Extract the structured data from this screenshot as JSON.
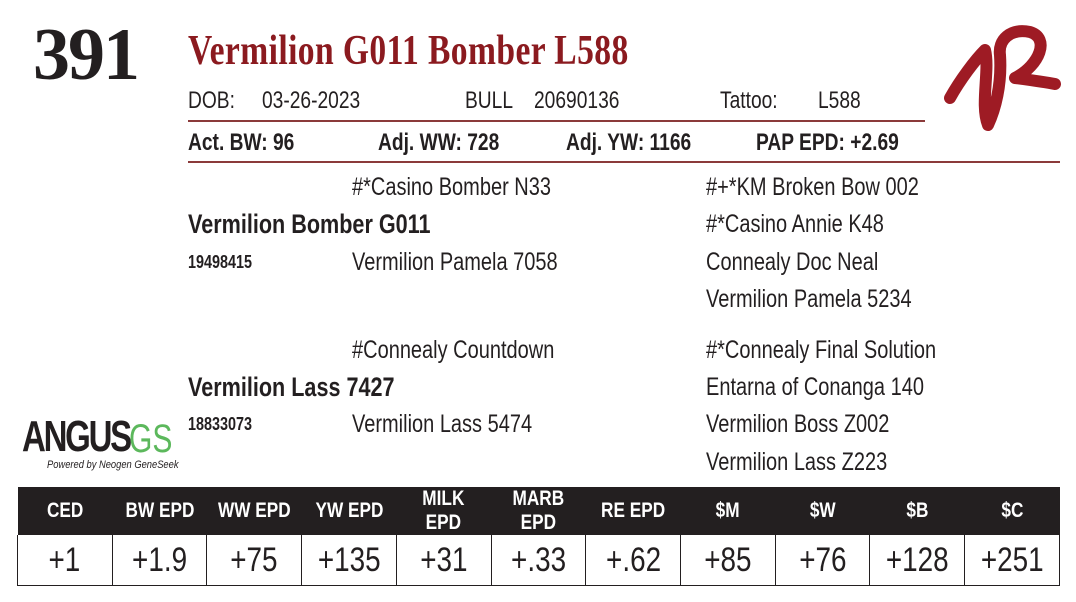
{
  "lot_number": "391",
  "animal_name": "Vermilion G011 Bomber L588",
  "info": {
    "dob_label": "DOB:",
    "dob": "03-26-2023",
    "sex": "BULL",
    "registration": "20690136",
    "tattoo_label": "Tattoo:",
    "tattoo": "L588"
  },
  "stats": {
    "act_bw": "Act. BW: 96",
    "adj_ww": "Adj. WW: 728",
    "adj_yw": "Adj. YW: 1166",
    "pap_epd": "PAP EPD: +2.69"
  },
  "pedigree": {
    "sire": {
      "name": "Vermilion Bomber G011",
      "reg": "19498415",
      "sire": "#*Casino Bomber N33",
      "dam": "Vermilion Pamela 7058",
      "gp": [
        "#+*KM Broken Bow 002",
        "#*Casino Annie K48",
        "Connealy Doc Neal",
        "Vermilion Pamela 5234"
      ]
    },
    "dam": {
      "name": "Vermilion Lass 7427",
      "reg": "18833073",
      "sire": "#Connealy Countdown",
      "dam": "Vermilion Lass 5474",
      "gp": [
        "#*Connealy Final Solution",
        "Entarna of Conanga 140",
        "Vermilion Boss Z002",
        "Vermilion Lass Z223"
      ]
    }
  },
  "logos": {
    "ranch": "VR",
    "angus_main": "ANGUS",
    "angus_gs": "GS",
    "angus_tagline": "Powered by Neogen GeneSeek"
  },
  "epd": {
    "headers": [
      "CED",
      "BW EPD",
      "WW EPD",
      "YW EPD",
      "MILK EPD",
      "MARB EPD",
      "RE EPD",
      "$M",
      "$W",
      "$B",
      "$C"
    ],
    "values": [
      "+1",
      "+1.9",
      "+75",
      "+135",
      "+31",
      "+.33",
      "+.62",
      "+85",
      "+76",
      "+128",
      "+251"
    ]
  },
  "colors": {
    "brand_red": "#8b1a1f",
    "angus_green": "#5cb85c"
  }
}
